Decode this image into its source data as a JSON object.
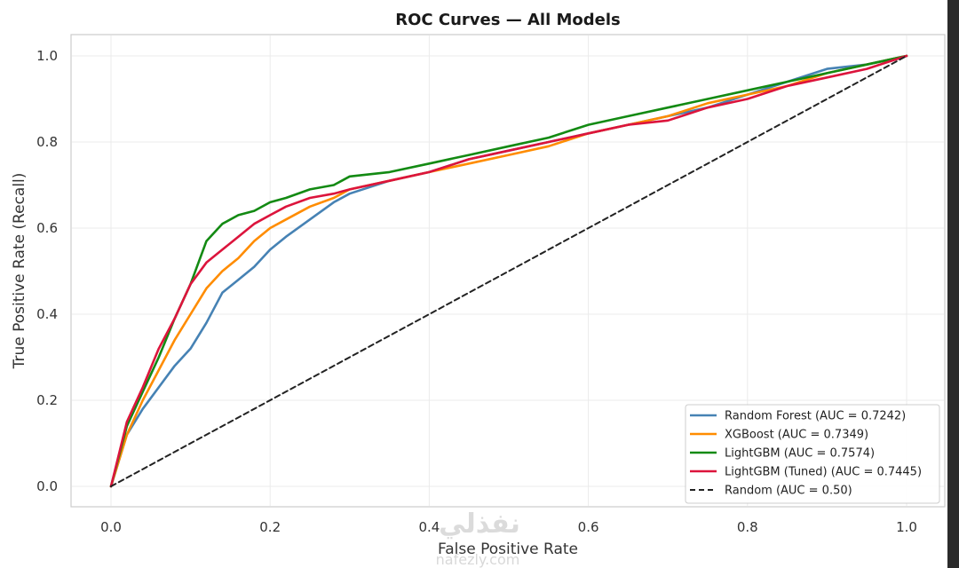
{
  "chart_data": {
    "type": "line",
    "title": "ROC Curves — All Models",
    "xlabel": "False Positive Rate",
    "ylabel": "True Positive Rate (Recall)",
    "xlim": [
      0.0,
      1.0
    ],
    "ylim": [
      0.0,
      1.0
    ],
    "xticks": [
      "0.0",
      "0.2",
      "0.4",
      "0.6",
      "0.8",
      "1.0"
    ],
    "yticks": [
      "0.0",
      "0.2",
      "0.4",
      "0.6",
      "0.8",
      "1.0"
    ],
    "grid": true,
    "legend_position": "lower-right",
    "series": [
      {
        "name": "Random Forest",
        "legend": "Random Forest  (AUC = 0.7242)",
        "color": "#4682b4",
        "dash": false,
        "points": [
          [
            0,
            0
          ],
          [
            0.02,
            0.12
          ],
          [
            0.04,
            0.18
          ],
          [
            0.06,
            0.23
          ],
          [
            0.08,
            0.28
          ],
          [
            0.1,
            0.32
          ],
          [
            0.12,
            0.38
          ],
          [
            0.14,
            0.45
          ],
          [
            0.16,
            0.48
          ],
          [
            0.18,
            0.51
          ],
          [
            0.2,
            0.55
          ],
          [
            0.22,
            0.58
          ],
          [
            0.25,
            0.62
          ],
          [
            0.28,
            0.66
          ],
          [
            0.3,
            0.68
          ],
          [
            0.35,
            0.71
          ],
          [
            0.4,
            0.73
          ],
          [
            0.45,
            0.76
          ],
          [
            0.5,
            0.78
          ],
          [
            0.55,
            0.8
          ],
          [
            0.6,
            0.82
          ],
          [
            0.65,
            0.84
          ],
          [
            0.7,
            0.86
          ],
          [
            0.75,
            0.88
          ],
          [
            0.8,
            0.91
          ],
          [
            0.85,
            0.94
          ],
          [
            0.9,
            0.97
          ],
          [
            0.95,
            0.98
          ],
          [
            1,
            1
          ]
        ]
      },
      {
        "name": "XGBoost",
        "legend": "XGBoost  (AUC = 0.7349)",
        "color": "#ff8c00",
        "dash": false,
        "points": [
          [
            0,
            0
          ],
          [
            0.02,
            0.12
          ],
          [
            0.04,
            0.2
          ],
          [
            0.06,
            0.27
          ],
          [
            0.08,
            0.34
          ],
          [
            0.1,
            0.4
          ],
          [
            0.12,
            0.46
          ],
          [
            0.14,
            0.5
          ],
          [
            0.16,
            0.53
          ],
          [
            0.18,
            0.57
          ],
          [
            0.2,
            0.6
          ],
          [
            0.22,
            0.62
          ],
          [
            0.25,
            0.65
          ],
          [
            0.28,
            0.67
          ],
          [
            0.3,
            0.69
          ],
          [
            0.35,
            0.71
          ],
          [
            0.4,
            0.73
          ],
          [
            0.45,
            0.75
          ],
          [
            0.5,
            0.77
          ],
          [
            0.55,
            0.79
          ],
          [
            0.6,
            0.82
          ],
          [
            0.65,
            0.84
          ],
          [
            0.7,
            0.86
          ],
          [
            0.75,
            0.89
          ],
          [
            0.8,
            0.91
          ],
          [
            0.85,
            0.93
          ],
          [
            0.9,
            0.96
          ],
          [
            0.95,
            0.98
          ],
          [
            1,
            1
          ]
        ]
      },
      {
        "name": "LightGBM",
        "legend": "LightGBM  (AUC = 0.7574)",
        "color": "#138a13",
        "dash": false,
        "points": [
          [
            0,
            0
          ],
          [
            0.02,
            0.14
          ],
          [
            0.04,
            0.22
          ],
          [
            0.06,
            0.3
          ],
          [
            0.08,
            0.39
          ],
          [
            0.1,
            0.47
          ],
          [
            0.12,
            0.57
          ],
          [
            0.14,
            0.61
          ],
          [
            0.16,
            0.63
          ],
          [
            0.18,
            0.64
          ],
          [
            0.2,
            0.66
          ],
          [
            0.22,
            0.67
          ],
          [
            0.25,
            0.69
          ],
          [
            0.28,
            0.7
          ],
          [
            0.3,
            0.72
          ],
          [
            0.35,
            0.73
          ],
          [
            0.4,
            0.75
          ],
          [
            0.45,
            0.77
          ],
          [
            0.5,
            0.79
          ],
          [
            0.55,
            0.81
          ],
          [
            0.6,
            0.84
          ],
          [
            0.65,
            0.86
          ],
          [
            0.7,
            0.88
          ],
          [
            0.75,
            0.9
          ],
          [
            0.8,
            0.92
          ],
          [
            0.85,
            0.94
          ],
          [
            0.9,
            0.96
          ],
          [
            0.95,
            0.98
          ],
          [
            1,
            1
          ]
        ]
      },
      {
        "name": "LightGBM (Tuned)",
        "legend": "LightGBM (Tuned)  (AUC = 0.7445)",
        "color": "#dc143c",
        "dash": false,
        "points": [
          [
            0,
            0
          ],
          [
            0.02,
            0.15
          ],
          [
            0.04,
            0.23
          ],
          [
            0.06,
            0.32
          ],
          [
            0.08,
            0.39
          ],
          [
            0.1,
            0.47
          ],
          [
            0.12,
            0.52
          ],
          [
            0.14,
            0.55
          ],
          [
            0.16,
            0.58
          ],
          [
            0.18,
            0.61
          ],
          [
            0.2,
            0.63
          ],
          [
            0.22,
            0.65
          ],
          [
            0.25,
            0.67
          ],
          [
            0.28,
            0.68
          ],
          [
            0.3,
            0.69
          ],
          [
            0.35,
            0.71
          ],
          [
            0.4,
            0.73
          ],
          [
            0.45,
            0.76
          ],
          [
            0.5,
            0.78
          ],
          [
            0.55,
            0.8
          ],
          [
            0.6,
            0.82
          ],
          [
            0.65,
            0.84
          ],
          [
            0.7,
            0.85
          ],
          [
            0.75,
            0.88
          ],
          [
            0.8,
            0.9
          ],
          [
            0.85,
            0.93
          ],
          [
            0.9,
            0.95
          ],
          [
            0.95,
            0.97
          ],
          [
            1,
            1
          ]
        ]
      },
      {
        "name": "Random",
        "legend": "Random (AUC = 0.50)",
        "color": "#222222",
        "dash": true,
        "points": [
          [
            0,
            0
          ],
          [
            1,
            1
          ]
        ]
      }
    ]
  },
  "watermark": {
    "arabic": "نفذلي",
    "site": "nafezly.com"
  }
}
